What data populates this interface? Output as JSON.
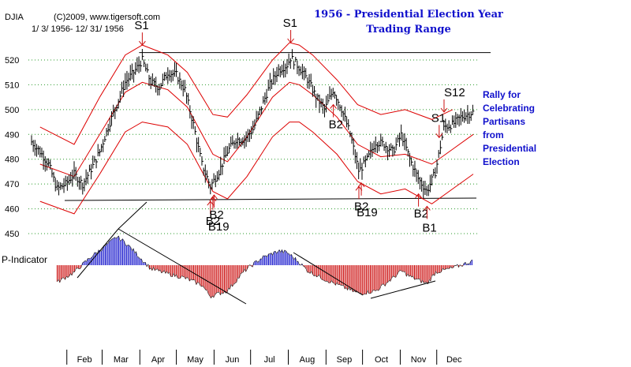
{
  "header": {
    "symbol": "DJIA",
    "copyright": "(C)2009, www.tigersoft.com",
    "date_range": "1/ 3/ 1956- 12/ 31/ 1956"
  },
  "title": [
    "1956 - Presidential Election Year",
    "Trading Range"
  ],
  "side_note": [
    "Rally for",
    "Celebrating",
    "Partisans",
    "from",
    "Presidential",
    "Election"
  ],
  "colors": {
    "price_bars": "#000000",
    "bands": "#dd0000",
    "grid": "#2a9a2a",
    "title": "#1010cc",
    "indicator_positive": "#1515cc",
    "indicator_negative": "#cc1010",
    "signals": "#cc1010"
  },
  "chart_data": {
    "type": "line",
    "y_axis_ticks": [
      "520",
      "510",
      "500",
      "490",
      "480",
      "470",
      "460",
      "450"
    ],
    "y_tick_values": [
      520,
      510,
      500,
      490,
      480,
      470,
      460,
      450
    ],
    "ylim": [
      445,
      528
    ],
    "x_range": [
      "1956-01-03",
      "1956-12-31"
    ],
    "months": [
      "Feb",
      "Mar",
      "Apr",
      "May",
      "Jun",
      "Jul",
      "Aug",
      "Sep",
      "Oct",
      "Nov",
      "Dec"
    ],
    "month_starts": [
      "1956-02-01",
      "1956-03-01",
      "1956-04-01",
      "1956-05-01",
      "1956-06-01",
      "1956-07-01",
      "1956-08-01",
      "1956-09-01",
      "1956-10-01",
      "1956-11-01",
      "1956-12-01"
    ],
    "price_close": [
      [
        "1956-01-03",
        487
      ],
      [
        "1956-01-10",
        483
      ],
      [
        "1956-01-17",
        478
      ],
      [
        "1956-01-24",
        468
      ],
      [
        "1956-01-31",
        470
      ],
      [
        "1956-02-07",
        474
      ],
      [
        "1956-02-14",
        470
      ],
      [
        "1956-02-21",
        476
      ],
      [
        "1956-02-28",
        483
      ],
      [
        "1956-03-06",
        493
      ],
      [
        "1956-03-13",
        502
      ],
      [
        "1956-03-20",
        511
      ],
      [
        "1956-03-27",
        515
      ],
      [
        "1956-04-03",
        520
      ],
      [
        "1956-04-10",
        511
      ],
      [
        "1956-04-17",
        509
      ],
      [
        "1956-04-24",
        515
      ],
      [
        "1956-05-01",
        514
      ],
      [
        "1956-05-08",
        508
      ],
      [
        "1956-05-15",
        494
      ],
      [
        "1956-05-22",
        478
      ],
      [
        "1956-05-29",
        469
      ],
      [
        "1956-06-05",
        475
      ],
      [
        "1956-06-12",
        483
      ],
      [
        "1956-06-19",
        488
      ],
      [
        "1956-06-26",
        488
      ],
      [
        "1956-07-03",
        492
      ],
      [
        "1956-07-10",
        501
      ],
      [
        "1956-07-17",
        510
      ],
      [
        "1956-07-24",
        516
      ],
      [
        "1956-07-31",
        518
      ],
      [
        "1956-08-03",
        521
      ],
      [
        "1956-08-10",
        517
      ],
      [
        "1956-08-17",
        512
      ],
      [
        "1956-08-24",
        505
      ],
      [
        "1956-08-31",
        500
      ],
      [
        "1956-09-07",
        508
      ],
      [
        "1956-09-14",
        500
      ],
      [
        "1956-09-21",
        490
      ],
      [
        "1956-09-28",
        475
      ],
      [
        "1956-10-05",
        480
      ],
      [
        "1956-10-12",
        487
      ],
      [
        "1956-10-19",
        486
      ],
      [
        "1956-10-26",
        483
      ],
      [
        "1956-11-02",
        490
      ],
      [
        "1956-11-09",
        480
      ],
      [
        "1956-11-16",
        472
      ],
      [
        "1956-11-23",
        467
      ],
      [
        "1956-11-30",
        475
      ],
      [
        "1956-12-07",
        493
      ],
      [
        "1956-12-14",
        494
      ],
      [
        "1956-12-21",
        497
      ],
      [
        "1956-12-31",
        499
      ]
    ],
    "upper_band": [
      [
        "1956-01-10",
        493
      ],
      [
        "1956-02-07",
        486
      ],
      [
        "1956-02-28",
        505
      ],
      [
        "1956-03-20",
        522
      ],
      [
        "1956-04-03",
        526
      ],
      [
        "1956-04-24",
        522
      ],
      [
        "1956-05-10",
        515
      ],
      [
        "1956-05-31",
        498
      ],
      [
        "1956-06-12",
        497
      ],
      [
        "1956-06-28",
        506
      ],
      [
        "1956-07-19",
        520
      ],
      [
        "1956-08-02",
        527
      ],
      [
        "1956-08-10",
        526
      ],
      [
        "1956-08-21",
        522
      ],
      [
        "1956-09-10",
        512
      ],
      [
        "1956-09-27",
        502
      ],
      [
        "1956-10-16",
        498
      ],
      [
        "1956-11-05",
        500
      ],
      [
        "1956-11-27",
        496
      ],
      [
        "1956-12-14",
        500
      ]
    ],
    "middle_band": [
      [
        "1956-01-10",
        478
      ],
      [
        "1956-02-07",
        473
      ],
      [
        "1956-02-28",
        490
      ],
      [
        "1956-03-20",
        507
      ],
      [
        "1956-04-03",
        511
      ],
      [
        "1956-04-24",
        508
      ],
      [
        "1956-05-10",
        501
      ],
      [
        "1956-05-31",
        482
      ],
      [
        "1956-06-12",
        479
      ],
      [
        "1956-06-28",
        489
      ],
      [
        "1956-07-19",
        505
      ],
      [
        "1956-08-02",
        511
      ],
      [
        "1956-08-10",
        510
      ],
      [
        "1956-08-21",
        506
      ],
      [
        "1956-09-10",
        497
      ],
      [
        "1956-09-27",
        486
      ],
      [
        "1956-10-16",
        481
      ],
      [
        "1956-11-05",
        482
      ],
      [
        "1956-11-27",
        478
      ],
      [
        "1956-12-14",
        484
      ],
      [
        "1956-12-31",
        490
      ]
    ],
    "lower_band": [
      [
        "1956-01-10",
        463
      ],
      [
        "1956-02-07",
        458
      ],
      [
        "1956-02-28",
        474
      ],
      [
        "1956-03-20",
        491
      ],
      [
        "1956-04-03",
        495
      ],
      [
        "1956-04-24",
        493
      ],
      [
        "1956-05-10",
        486
      ],
      [
        "1956-05-31",
        467
      ],
      [
        "1956-06-12",
        464
      ],
      [
        "1956-06-28",
        473
      ],
      [
        "1956-07-19",
        489
      ],
      [
        "1956-08-02",
        495
      ],
      [
        "1956-08-10",
        495
      ],
      [
        "1956-08-21",
        491
      ],
      [
        "1956-09-10",
        482
      ],
      [
        "1956-09-27",
        471
      ],
      [
        "1956-10-16",
        466
      ],
      [
        "1956-11-05",
        468
      ],
      [
        "1956-11-27",
        462
      ],
      [
        "1956-12-14",
        468
      ],
      [
        "1956-12-31",
        474
      ]
    ],
    "trading_range": {
      "top": 523,
      "bottom": 464,
      "start": "1956-04-03",
      "end": "1956-12-31"
    },
    "signals": [
      {
        "label": "S1",
        "date": "1956-04-03",
        "type": "sell"
      },
      {
        "label": "S1",
        "date": "1956-08-03",
        "type": "sell"
      },
      {
        "label": "S1",
        "date": "1956-12-03",
        "type": "sell"
      },
      {
        "label": "S12",
        "date": "1956-12-07",
        "type": "sell"
      },
      {
        "label": "B2",
        "date": "1956-05-29",
        "type": "buy"
      },
      {
        "label": "B2",
        "date": "1956-06-01",
        "type": "buy"
      },
      {
        "label": "B19",
        "date": "1956-05-31",
        "type": "buy"
      },
      {
        "label": "B2",
        "date": "1956-09-07",
        "type": "buy"
      },
      {
        "label": "B2",
        "date": "1956-09-28",
        "type": "buy"
      },
      {
        "label": "B19",
        "date": "1956-09-30",
        "type": "buy"
      },
      {
        "label": "B2",
        "date": "1956-11-16",
        "type": "buy"
      },
      {
        "label": "B1",
        "date": "1956-11-23",
        "type": "buy"
      }
    ],
    "indicator": {
      "label": "P-Indicator",
      "values": [
        [
          "1956-01-24",
          -24
        ],
        [
          "1956-02-07",
          -10
        ],
        [
          "1956-02-21",
          12
        ],
        [
          "1956-03-06",
          30
        ],
        [
          "1956-03-13",
          40
        ],
        [
          "1956-03-20",
          32
        ],
        [
          "1956-03-27",
          20
        ],
        [
          "1956-04-10",
          -5
        ],
        [
          "1956-04-24",
          -12
        ],
        [
          "1956-05-08",
          -18
        ],
        [
          "1956-05-22",
          -28
        ],
        [
          "1956-05-29",
          -44
        ],
        [
          "1956-06-12",
          -36
        ],
        [
          "1956-06-26",
          -8
        ],
        [
          "1956-07-10",
          10
        ],
        [
          "1956-07-24",
          20
        ],
        [
          "1956-07-31",
          18
        ],
        [
          "1956-08-10",
          4
        ],
        [
          "1956-08-17",
          -8
        ],
        [
          "1956-08-31",
          -20
        ],
        [
          "1956-09-14",
          -30
        ],
        [
          "1956-09-28",
          -40
        ],
        [
          "1956-10-12",
          -36
        ],
        [
          "1956-10-26",
          -18
        ],
        [
          "1956-11-02",
          -8
        ],
        [
          "1956-11-09",
          -16
        ],
        [
          "1956-11-23",
          -26
        ],
        [
          "1956-11-30",
          -10
        ],
        [
          "1956-12-14",
          -4
        ],
        [
          "1956-12-31",
          6
        ]
      ]
    },
    "trendlines": [
      {
        "from": [
          "1956-01-31",
          462
        ],
        "to": [
          "1956-11-23",
          464
        ]
      }
    ]
  }
}
